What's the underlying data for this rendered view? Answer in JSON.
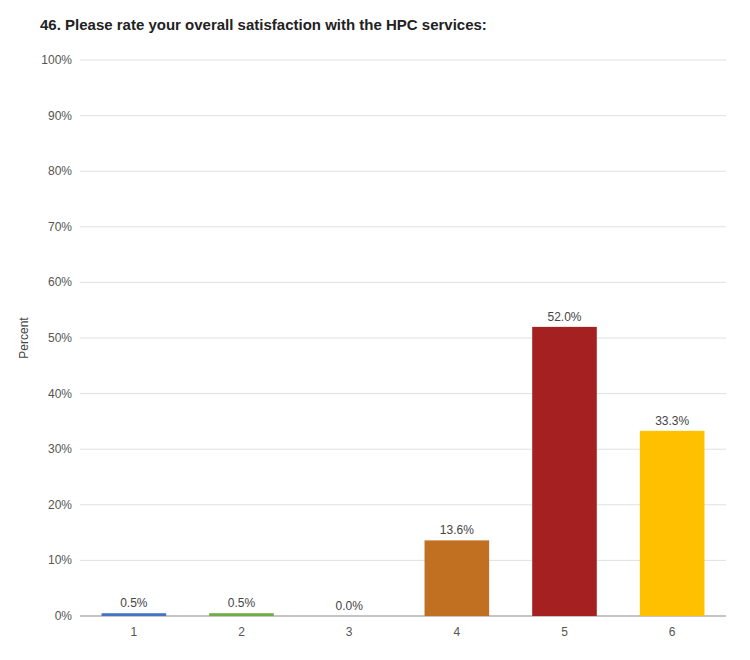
{
  "chart_data": {
    "type": "bar",
    "title": "46. Please rate your overall satisfaction with the HPC services:",
    "categories": [
      "1",
      "2",
      "3",
      "4",
      "5",
      "6"
    ],
    "values": [
      0.5,
      0.5,
      0.0,
      13.6,
      52.0,
      33.3
    ],
    "value_labels": [
      "0.5%",
      "0.5%",
      "0.0%",
      "13.6%",
      "52.0%",
      "33.3%"
    ],
    "data_labels": true,
    "colors": [
      "#4472C4",
      "#70AD47",
      "#808080",
      "#C07020",
      "#A52020",
      "#FFC000"
    ],
    "ylabel": "Percent",
    "ylim": [
      0,
      100
    ],
    "yticks": [
      {
        "value": 0,
        "label": "0%"
      },
      {
        "value": 10,
        "label": "10%"
      },
      {
        "value": 20,
        "label": "20%"
      },
      {
        "value": 30,
        "label": "30%"
      },
      {
        "value": 40,
        "label": "40%"
      },
      {
        "value": 50,
        "label": "50%"
      },
      {
        "value": 60,
        "label": "60%"
      },
      {
        "value": 70,
        "label": "70%"
      },
      {
        "value": 80,
        "label": "80%"
      },
      {
        "value": 90,
        "label": "90%"
      },
      {
        "value": 100,
        "label": "100%"
      }
    ],
    "grid": true
  }
}
